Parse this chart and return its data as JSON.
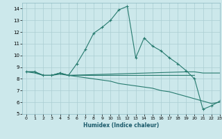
{
  "xlabel": "Humidex (Indice chaleur)",
  "xlim": [
    -0.5,
    23
  ],
  "ylim": [
    5,
    14.5
  ],
  "yticks": [
    5,
    6,
    7,
    8,
    9,
    10,
    11,
    12,
    13,
    14
  ],
  "xticks": [
    0,
    1,
    2,
    3,
    4,
    5,
    6,
    7,
    8,
    9,
    10,
    11,
    12,
    13,
    14,
    15,
    16,
    17,
    18,
    19,
    20,
    21,
    22,
    23
  ],
  "line_color": "#267a6e",
  "bg_color": "#cce8eb",
  "grid_color": "#aacdd2",
  "series1_x": [
    0,
    1,
    2,
    3,
    4,
    5,
    6,
    7,
    8,
    9,
    10,
    11,
    12,
    13,
    14,
    15,
    16,
    17,
    18,
    19,
    20,
    21,
    22,
    23
  ],
  "series1_y": [
    8.6,
    8.6,
    8.3,
    8.3,
    8.5,
    8.3,
    9.3,
    10.5,
    11.9,
    12.4,
    13.0,
    13.9,
    14.2,
    9.8,
    11.5,
    10.8,
    10.4,
    9.8,
    9.3,
    8.7,
    8.0,
    5.4,
    5.7,
    6.1
  ],
  "series2_x": [
    0,
    1,
    2,
    3,
    4,
    5,
    6,
    7,
    8,
    9,
    10,
    11,
    12,
    13,
    14,
    15,
    16,
    17,
    18,
    19,
    20
  ],
  "series2_y": [
    8.6,
    8.6,
    8.3,
    8.3,
    8.5,
    8.3,
    8.3,
    8.3,
    8.3,
    8.3,
    8.3,
    8.3,
    8.3,
    8.3,
    8.3,
    8.3,
    8.3,
    8.3,
    8.3,
    8.3,
    8.3
  ],
  "series3_x": [
    0,
    1,
    2,
    3,
    4,
    5,
    6,
    7,
    8,
    9,
    10,
    11,
    12,
    13,
    14,
    15,
    16,
    17,
    18,
    19,
    20,
    21,
    22,
    23
  ],
  "series3_y": [
    8.6,
    8.5,
    8.3,
    8.3,
    8.4,
    8.3,
    8.2,
    8.1,
    8.0,
    7.9,
    7.8,
    7.6,
    7.5,
    7.4,
    7.3,
    7.2,
    7.0,
    6.9,
    6.7,
    6.5,
    6.3,
    6.1,
    5.9,
    6.0
  ],
  "series4_x": [
    0,
    1,
    2,
    3,
    4,
    5,
    19,
    20,
    21,
    22,
    23
  ],
  "series4_y": [
    8.6,
    8.6,
    8.3,
    8.3,
    8.5,
    8.3,
    8.6,
    8.6,
    8.5,
    8.5,
    8.5
  ]
}
